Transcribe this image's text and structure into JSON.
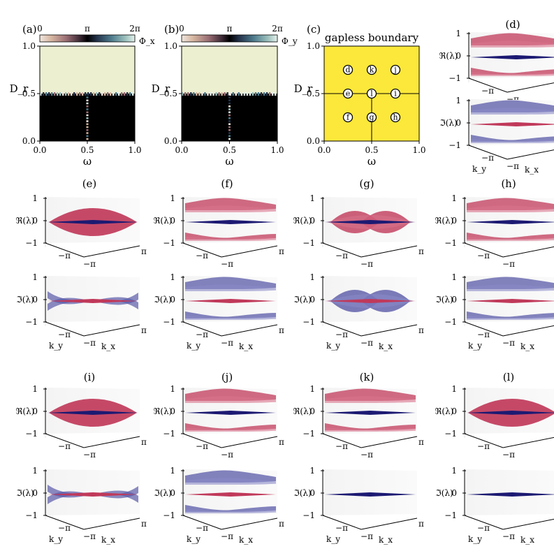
{
  "colors": {
    "gapless": "#fce83a",
    "region_top": "#ecefd0",
    "region_bottom": "#000000",
    "real_band": "#c0395a",
    "real_band_light": "#d8738c",
    "imag_band": "#5a5aa8",
    "flat_band": "#1c1a72",
    "pane": "#f2f2f2"
  },
  "chart_data": [
    {
      "type": "heatmap",
      "panel": "(a)",
      "colorbar_label": "Φ_x",
      "colorbar_ticks": [
        "0",
        "π",
        "2π"
      ],
      "xlabel": "ω",
      "ylabel": "D_r",
      "xticks": [
        "0.0",
        "0.5",
        "1.0"
      ],
      "yticks": [
        "0.0",
        "0.5",
        "1.0"
      ],
      "xlim": [
        0,
        1
      ],
      "ylim": [
        0,
        1
      ],
      "boundary_Dr": 0.5,
      "line_omega": 0.5
    },
    {
      "type": "heatmap",
      "panel": "(b)",
      "colorbar_label": "Φ_y",
      "colorbar_ticks": [
        "0",
        "π",
        "2π"
      ],
      "xlabel": "ω",
      "ylabel": "D_r",
      "xticks": [
        "0.0",
        "0.5",
        "1.0"
      ],
      "yticks": [
        "0.0",
        "0.5",
        "1.0"
      ],
      "xlim": [
        0,
        1
      ],
      "ylim": [
        0,
        1
      ],
      "boundary_Dr": 0.5,
      "line_omega": 0.5
    },
    {
      "type": "scatter",
      "panel": "(c)",
      "title": "gapless boundary",
      "xlabel": "ω",
      "ylabel": "D_r",
      "xticks": [
        "0.0",
        "0.5",
        "1.0"
      ],
      "yticks": [
        "0.0",
        "0.5",
        "1.0"
      ],
      "xlim": [
        0,
        1
      ],
      "ylim": [
        0,
        1
      ],
      "points": [
        {
          "label": "d",
          "x": 0.25,
          "y": 0.75
        },
        {
          "label": "k",
          "x": 0.5,
          "y": 0.75
        },
        {
          "label": "j",
          "x": 0.75,
          "y": 0.75
        },
        {
          "label": "e",
          "x": 0.25,
          "y": 0.5
        },
        {
          "label": "l",
          "x": 0.5,
          "y": 0.5
        },
        {
          "label": "i",
          "x": 0.75,
          "y": 0.5
        },
        {
          "label": "f",
          "x": 0.25,
          "y": 0.25
        },
        {
          "label": "g",
          "x": 0.5,
          "y": 0.25
        },
        {
          "label": "h",
          "x": 0.75,
          "y": 0.25
        }
      ]
    }
  ],
  "surface_panels": [
    {
      "label": "(d)",
      "re": "split",
      "im": "split"
    },
    {
      "label": "(e)",
      "re": "dome",
      "im": "cross"
    },
    {
      "label": "(f)",
      "re": "split",
      "im": "split"
    },
    {
      "label": "(g)",
      "re": "bubble",
      "im": "bubble"
    },
    {
      "label": "(h)",
      "re": "split",
      "im": "split"
    },
    {
      "label": "(i)",
      "re": "dome",
      "im": "cross"
    },
    {
      "label": "(j)",
      "re": "split",
      "im": "split"
    },
    {
      "label": "(k)",
      "re": "split",
      "im": "flat"
    },
    {
      "label": "(l)",
      "re": "dome",
      "im": "flat"
    }
  ],
  "axes3d": {
    "re_label": "ℜ(λ)",
    "im_label": "ℑ(λ)",
    "z_ticks": [
      "1",
      "0",
      "−1"
    ],
    "edge_ticks": [
      "−π",
      "−π",
      "π"
    ],
    "ky_label": "k_y",
    "kx_label": "k_x"
  }
}
